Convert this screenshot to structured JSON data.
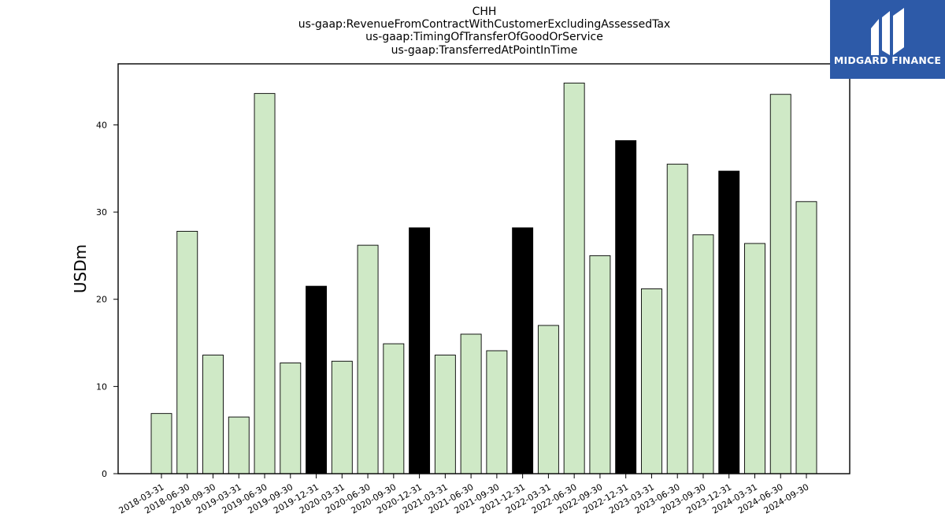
{
  "logo": {
    "text": "MIDGARD FINANCE",
    "bg_color": "#2d5aa8",
    "text_color": "#ffffff"
  },
  "chart_data": {
    "type": "bar",
    "title_lines": [
      "CHH",
      "us-gaap:RevenueFromContractWithCustomerExcludingAssessedTax",
      "us-gaap:TimingOfTransferOfGoodOrService",
      "us-gaap:TransferredAtPointInTime"
    ],
    "ylabel": "USDm",
    "xlabel": "",
    "ylim": [
      0,
      47
    ],
    "yticks": [
      0,
      10,
      20,
      30,
      40
    ],
    "grid": false,
    "colors": {
      "quarter": "#cfe9c6",
      "year_end": "#000000",
      "edge": "#000000"
    },
    "categories": [
      "2018-03-31",
      "2018-06-30",
      "2018-09-30",
      "2019-03-31",
      "2019-06-30",
      "2019-09-30",
      "2019-12-31",
      "2020-03-31",
      "2020-06-30",
      "2020-09-30",
      "2020-12-31",
      "2021-03-31",
      "2021-06-30",
      "2021-09-30",
      "2021-12-31",
      "2022-03-31",
      "2022-06-30",
      "2022-09-30",
      "2022-12-31",
      "2023-03-31",
      "2023-06-30",
      "2023-09-30",
      "2023-12-31",
      "2024-03-31",
      "2024-06-30",
      "2024-09-30"
    ],
    "values": [
      6.9,
      27.8,
      13.6,
      6.5,
      43.6,
      12.7,
      21.5,
      12.9,
      26.2,
      14.9,
      28.2,
      13.6,
      16.0,
      14.1,
      28.2,
      17.0,
      44.8,
      25.0,
      38.2,
      21.2,
      35.5,
      27.4,
      34.7,
      26.4,
      43.5,
      31.2
    ],
    "highlight": [
      false,
      false,
      false,
      false,
      false,
      false,
      true,
      false,
      false,
      false,
      true,
      false,
      false,
      false,
      true,
      false,
      false,
      false,
      true,
      false,
      false,
      false,
      true,
      false,
      false,
      false
    ]
  }
}
